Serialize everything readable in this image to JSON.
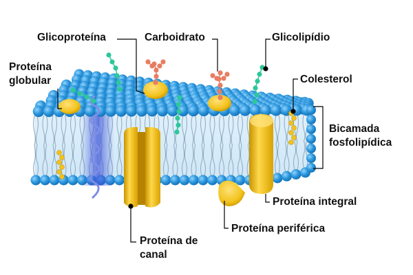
{
  "labels": {
    "glycoprotein": "Glicoproteína",
    "carbohydrate": "Carboidrato",
    "glycolipid": "Glicolipídio",
    "globular_protein_line1": "Proteína",
    "globular_protein_line2": "globular",
    "cholesterol": "Colesterol",
    "bilayer_line1": "Bicamada",
    "bilayer_line2": "fosfolipídica",
    "integral_protein": "Proteína integral",
    "peripheral_protein": "Proteína periférica",
    "channel_protein_line1": "Proteína de",
    "channel_protein_line2": "canal"
  },
  "colors": {
    "phospholipid_head": "#2b95db",
    "phospholipid_head_dark": "#1470b5",
    "phospholipid_tail": "#8fa9bd",
    "bilayer_core": "#d9eefa",
    "protein_yellow": "#f2c21b",
    "protein_yellow_dark": "#c89400",
    "carbohydrate_green": "#2ec79a",
    "carbohydrate_red": "#e87d62",
    "helix_blue": "#7f8de6",
    "leader_line": "#000000",
    "text": "#111111"
  }
}
